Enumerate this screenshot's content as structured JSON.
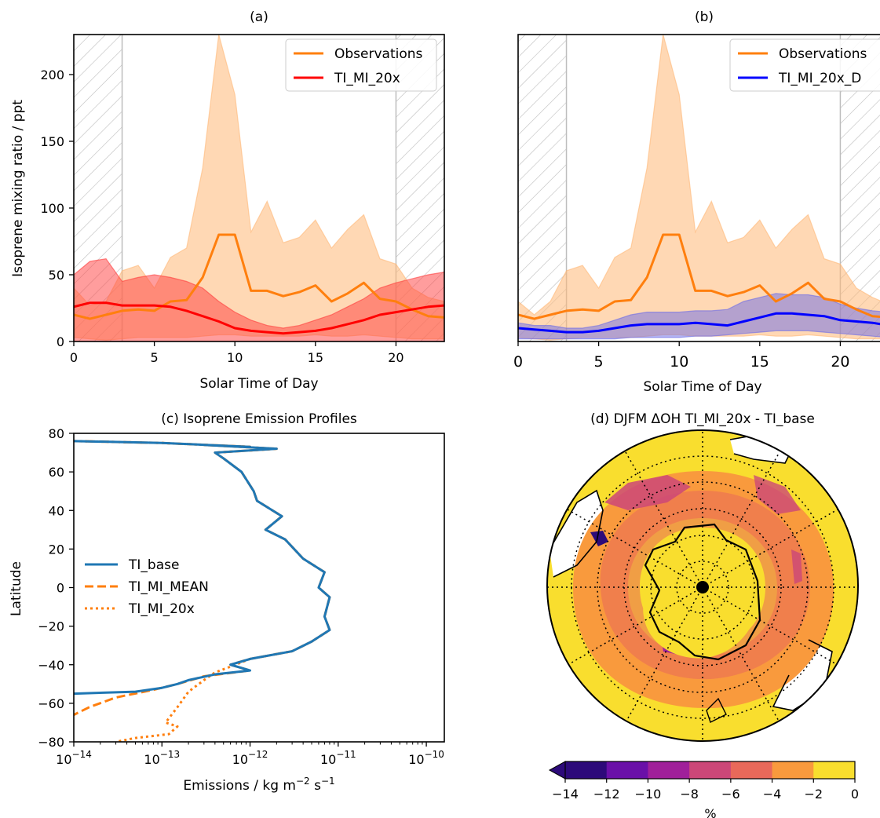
{
  "chart_data": [
    {
      "panel": "a",
      "type": "line",
      "title": "(a)",
      "xlabel": "Solar Time of Day",
      "ylabel": "Isoprene mixing ratio / ppt",
      "xlim": [
        0,
        23
      ],
      "ylim": [
        0,
        230
      ],
      "xticks": [
        0,
        5,
        10,
        15,
        20
      ],
      "yticks": [
        0,
        50,
        100,
        150,
        200
      ],
      "night_shading": [
        [
          0,
          3
        ],
        [
          20,
          23
        ]
      ],
      "legend_position": "top-right",
      "x": [
        0,
        1,
        2,
        3,
        4,
        5,
        6,
        7,
        8,
        9,
        10,
        11,
        12,
        13,
        14,
        15,
        16,
        17,
        18,
        19,
        20,
        21,
        22,
        23
      ],
      "series": [
        {
          "name": "Observations",
          "color": "#ff7f0e",
          "values": [
            20,
            17,
            20,
            23,
            24,
            23,
            30,
            31,
            48,
            80,
            80,
            38,
            38,
            34,
            37,
            42,
            30,
            36,
            44,
            32,
            30,
            24,
            19,
            18
          ],
          "lower": [
            3,
            2,
            1,
            2,
            3,
            3,
            3,
            3,
            4,
            5,
            5,
            4,
            4,
            4,
            4,
            5,
            4,
            4,
            5,
            4,
            3,
            2,
            2,
            2
          ],
          "upper": [
            40,
            27,
            30,
            53,
            57,
            40,
            63,
            70,
            130,
            230,
            185,
            82,
            105,
            74,
            78,
            91,
            70,
            84,
            95,
            62,
            58,
            40,
            33,
            30
          ]
        },
        {
          "name": "TI_MI_20x",
          "color": "#ff0000",
          "values": [
            26,
            29,
            29,
            27,
            27,
            27,
            26,
            23,
            19,
            15,
            10,
            8,
            7,
            6,
            7,
            8,
            10,
            13,
            16,
            20,
            22,
            24,
            26,
            27
          ],
          "lower": [
            0,
            0,
            0,
            0,
            0,
            0,
            0,
            0,
            0,
            0,
            0,
            0,
            0,
            0,
            0,
            0,
            0,
            0,
            0,
            0,
            0,
            0,
            0,
            0
          ],
          "upper": [
            50,
            60,
            62,
            45,
            48,
            50,
            48,
            45,
            40,
            30,
            22,
            16,
            12,
            10,
            12,
            16,
            20,
            26,
            32,
            40,
            44,
            47,
            50,
            52
          ]
        }
      ]
    },
    {
      "panel": "b",
      "type": "line",
      "title": "(b)",
      "xlabel": "Solar Time of Day",
      "xlim": [
        0,
        23
      ],
      "ylim": [
        0,
        230
      ],
      "xticks": [
        0,
        5,
        10,
        15,
        20
      ],
      "night_shading": [
        [
          0,
          3
        ],
        [
          20,
          23
        ]
      ],
      "legend_position": "top-right",
      "x": [
        0,
        1,
        2,
        3,
        4,
        5,
        6,
        7,
        8,
        9,
        10,
        11,
        12,
        13,
        14,
        15,
        16,
        17,
        18,
        19,
        20,
        21,
        22,
        23
      ],
      "series": [
        {
          "name": "Observations",
          "color": "#ff7f0e",
          "values": [
            20,
            17,
            20,
            23,
            24,
            23,
            30,
            31,
            48,
            80,
            80,
            38,
            38,
            34,
            37,
            42,
            30,
            36,
            44,
            32,
            30,
            24,
            19,
            18
          ],
          "lower": [
            3,
            2,
            1,
            2,
            3,
            3,
            3,
            3,
            4,
            5,
            5,
            4,
            4,
            4,
            4,
            5,
            4,
            4,
            5,
            4,
            3,
            2,
            2,
            2
          ],
          "upper": [
            30,
            20,
            30,
            53,
            57,
            40,
            63,
            70,
            130,
            230,
            185,
            82,
            105,
            74,
            78,
            91,
            70,
            84,
            95,
            62,
            58,
            40,
            33,
            28
          ]
        },
        {
          "name": "TI_MI_20x_D",
          "color": "#0000ff",
          "values": [
            10,
            9,
            8,
            7,
            7,
            8,
            10,
            12,
            13,
            13,
            13,
            14,
            13,
            12,
            15,
            18,
            21,
            21,
            20,
            19,
            16,
            15,
            14,
            12
          ],
          "lower": [
            2,
            2,
            2,
            2,
            2,
            2,
            2,
            3,
            3,
            3,
            3,
            4,
            4,
            5,
            6,
            7,
            8,
            8,
            8,
            7,
            6,
            5,
            4,
            3
          ],
          "upper": [
            14,
            12,
            12,
            10,
            10,
            12,
            16,
            20,
            22,
            22,
            22,
            23,
            23,
            24,
            30,
            33,
            36,
            35,
            35,
            33,
            28,
            25,
            23,
            22
          ]
        }
      ]
    },
    {
      "panel": "c",
      "type": "line",
      "title": "(c) Isoprene Emission Profiles",
      "xlabel": "Emissions / kg m",
      "xlabel_sup1": "−2",
      "xlabel_mid": " s",
      "xlabel_sup2": "−1",
      "ylabel": "Latitude",
      "xscale": "log",
      "xlim": [
        1e-14,
        1.6e-10
      ],
      "ylim": [
        -80,
        80
      ],
      "xticks": [
        {
          "base": "10",
          "exp": "−14",
          "value": 1e-14
        },
        {
          "base": "10",
          "exp": "−13",
          "value": 1e-13
        },
        {
          "base": "10",
          "exp": "−12",
          "value": 1e-12
        },
        {
          "base": "10",
          "exp": "−11",
          "value": 1e-11
        },
        {
          "base": "10",
          "exp": "−10",
          "value": 1e-10
        }
      ],
      "yticks": [
        "80",
        "60",
        "40",
        "20",
        "0",
        "−20",
        "−40",
        "−60",
        "−80"
      ],
      "yticks_values": [
        80,
        60,
        40,
        20,
        0,
        -20,
        -40,
        -60,
        -80
      ],
      "legend_position": "center-left",
      "series": [
        {
          "name": "TI_base",
          "color": "#1f77b4",
          "style": "solid",
          "points": [
            [
              1e-14,
              76
            ],
            [
              1e-13,
              75
            ],
            [
              1e-12,
              73
            ],
            [
              3e-13,
              74
            ],
            [
              2e-12,
              72
            ],
            [
              4e-13,
              70
            ],
            [
              5e-13,
              67
            ],
            [
              8e-13,
              60
            ],
            [
              1.1e-12,
              50
            ],
            [
              1.2e-12,
              45
            ],
            [
              1.8e-12,
              40
            ],
            [
              2.3e-12,
              37
            ],
            [
              1.5e-12,
              30
            ],
            [
              2.5e-12,
              25
            ],
            [
              4e-12,
              15
            ],
            [
              7e-12,
              8
            ],
            [
              6e-12,
              0
            ],
            [
              8e-12,
              -5
            ],
            [
              7e-12,
              -15
            ],
            [
              8e-12,
              -22
            ],
            [
              5e-12,
              -28
            ],
            [
              3e-12,
              -33
            ],
            [
              1e-12,
              -37
            ],
            [
              6e-13,
              -40
            ],
            [
              1e-12,
              -43
            ],
            [
              4e-13,
              -45
            ],
            [
              2e-13,
              -48
            ],
            [
              1.5e-13,
              -50
            ],
            [
              1e-13,
              -52
            ],
            [
              5e-14,
              -54
            ],
            [
              1e-14,
              -55
            ]
          ]
        },
        {
          "name": "TI_MI_MEAN",
          "color": "#ff7f0e",
          "style": "dashed",
          "points": [
            [
              1e-14,
              76
            ],
            [
              1e-13,
              75
            ],
            [
              1e-12,
              73
            ],
            [
              3e-13,
              74
            ],
            [
              2e-12,
              72
            ],
            [
              4e-13,
              70
            ],
            [
              5e-13,
              67
            ],
            [
              8e-13,
              60
            ],
            [
              1.1e-12,
              50
            ],
            [
              1.2e-12,
              45
            ],
            [
              1.8e-12,
              40
            ],
            [
              2.3e-12,
              37
            ],
            [
              1.5e-12,
              30
            ],
            [
              2.5e-12,
              25
            ],
            [
              4e-12,
              15
            ],
            [
              7e-12,
              8
            ],
            [
              6e-12,
              0
            ],
            [
              8e-12,
              -5
            ],
            [
              7e-12,
              -15
            ],
            [
              8e-12,
              -22
            ],
            [
              5e-12,
              -28
            ],
            [
              3e-12,
              -33
            ],
            [
              1e-12,
              -37
            ],
            [
              6e-13,
              -40
            ],
            [
              1e-12,
              -43
            ],
            [
              3e-13,
              -46
            ],
            [
              1.5e-13,
              -50
            ],
            [
              8e-14,
              -53
            ],
            [
              3e-14,
              -57
            ],
            [
              1.5e-14,
              -62
            ],
            [
              1e-14,
              -66
            ]
          ]
        },
        {
          "name": "TI_MI_20x",
          "color": "#ff7f0e",
          "style": "dotted",
          "points": [
            [
              1e-14,
              76
            ],
            [
              1e-13,
              75
            ],
            [
              1e-12,
              73
            ],
            [
              3e-13,
              74
            ],
            [
              2e-12,
              72
            ],
            [
              4e-13,
              70
            ],
            [
              5e-13,
              67
            ],
            [
              8e-13,
              60
            ],
            [
              1.1e-12,
              50
            ],
            [
              1.2e-12,
              45
            ],
            [
              1.8e-12,
              40
            ],
            [
              2.3e-12,
              37
            ],
            [
              1.5e-12,
              30
            ],
            [
              2.5e-12,
              25
            ],
            [
              4e-12,
              15
            ],
            [
              7e-12,
              8
            ],
            [
              6e-12,
              0
            ],
            [
              8e-12,
              -5
            ],
            [
              7e-12,
              -15
            ],
            [
              8e-12,
              -22
            ],
            [
              5e-12,
              -28
            ],
            [
              3e-12,
              -33
            ],
            [
              1e-12,
              -37
            ],
            [
              6e-13,
              -41
            ],
            [
              4e-13,
              -44
            ],
            [
              3e-13,
              -48
            ],
            [
              2e-13,
              -54
            ],
            [
              1.5e-13,
              -62
            ],
            [
              1.1e-13,
              -70
            ],
            [
              1.5e-13,
              -72
            ],
            [
              1.2e-13,
              -76
            ],
            [
              5e-14,
              -78
            ],
            [
              3e-14,
              -80
            ]
          ]
        }
      ]
    },
    {
      "panel": "d",
      "type": "heatmap",
      "title": "(d) DJFM ΔOH TI_MI_20x - TI_base",
      "projection": "south-polar-stereographic",
      "colorbar_label": "%",
      "colorbar_ticks": [
        "−14",
        "−12",
        "−10",
        "−8",
        "−6",
        "−4",
        "−2",
        "0"
      ],
      "colorbar_levels": [
        -14,
        -12,
        -10,
        -8,
        -6,
        -4,
        -2,
        0
      ],
      "colorbar_colors": [
        "#2d0a7a",
        "#6a10a8",
        "#a0209a",
        "#cc4778",
        "#e9695a",
        "#f99a3d",
        "#f9de2e"
      ],
      "colorbar_extend": "min"
    }
  ]
}
